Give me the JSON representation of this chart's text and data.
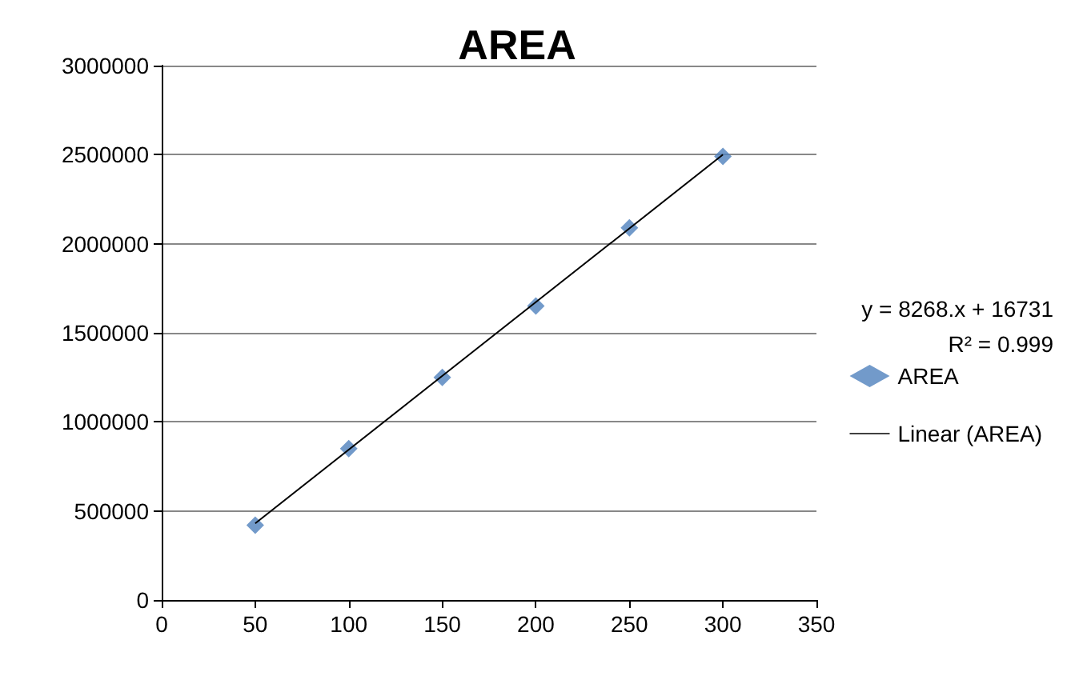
{
  "chart_data": {
    "type": "scatter",
    "title": "AREA",
    "x": [
      50,
      100,
      150,
      200,
      250,
      300
    ],
    "series": [
      {
        "name": "AREA",
        "color": "#4f81bd",
        "marker": "diamond",
        "values": [
          420000,
          850000,
          1250000,
          1650000,
          2090000,
          2490000
        ]
      },
      {
        "name": "Linear (AREA)",
        "type": "line",
        "color": "#000000",
        "marker": "none",
        "x": [
          50,
          300
        ],
        "values": [
          430000,
          2500000
        ]
      }
    ],
    "xlim": [
      0,
      350
    ],
    "xticks": [
      0,
      50,
      100,
      150,
      200,
      250,
      300,
      350
    ],
    "ylim": [
      0,
      3000000
    ],
    "yticks": [
      0,
      500000,
      1000000,
      1500000,
      2000000,
      2500000,
      3000000
    ],
    "grid": "y",
    "legend": "right",
    "annotations": [
      "y = 8268.x + 16731",
      "R² = 0.999"
    ]
  }
}
